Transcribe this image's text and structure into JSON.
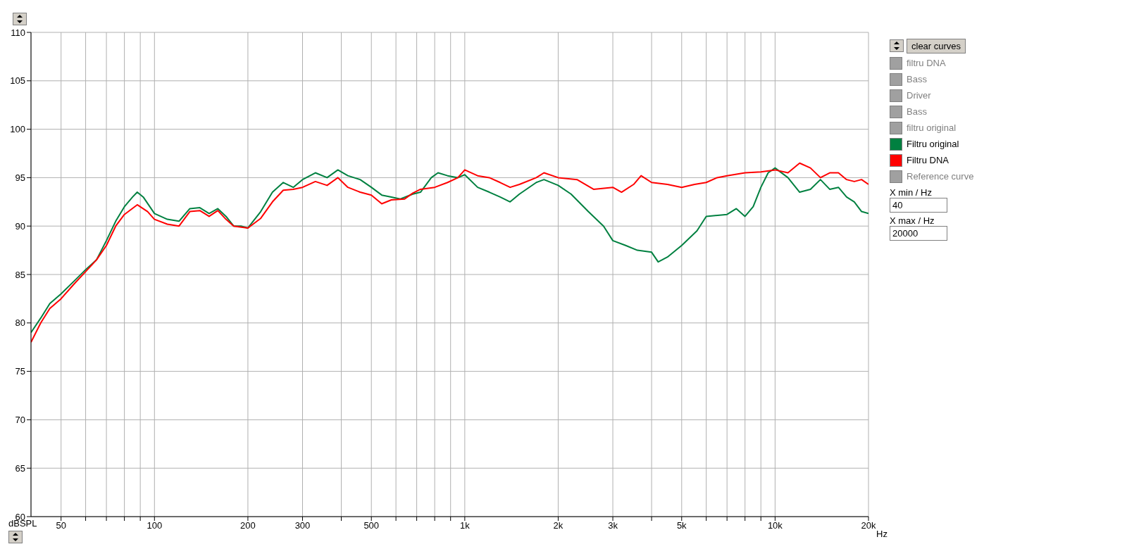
{
  "chart_data": {
    "type": "line",
    "ylabel": "dBSPL",
    "log": "x",
    "grid": true,
    "legend": "right",
    "line_style": "solid",
    "marker": "none",
    "xlim": [
      40,
      20000
    ],
    "ylim": [
      60,
      110
    ],
    "yticks": [
      60,
      65,
      70,
      75,
      80,
      85,
      90,
      95,
      100,
      105,
      110
    ],
    "xticks": [
      50,
      {
        "value": 60,
        "label": null
      },
      {
        "value": 70,
        "label": null
      },
      {
        "value": 80,
        "label": null
      },
      {
        "value": 90,
        "label": null
      },
      100,
      200,
      300,
      {
        "value": 400,
        "label": null
      },
      500,
      {
        "value": 600,
        "label": null
      },
      {
        "value": 700,
        "label": null
      },
      {
        "value": 800,
        "label": null
      },
      {
        "value": 900,
        "label": null
      },
      {
        "value": 1000,
        "label": "1k"
      },
      {
        "value": 2000,
        "label": "2k"
      },
      {
        "value": 3000,
        "label": "3k"
      },
      {
        "value": 4000,
        "label": null
      },
      {
        "value": 5000,
        "label": "5k"
      },
      {
        "value": 6000,
        "label": null
      },
      {
        "value": 7000,
        "label": null
      },
      {
        "value": 8000,
        "label": null
      },
      {
        "value": 9000,
        "label": null
      },
      {
        "value": 10000,
        "label": "10k"
      },
      {
        "value": 20000,
        "label": "20k"
      }
    ],
    "xlabel": "Hz",
    "annotations": [
      "clear curves",
      "filtru DNA",
      "Bass",
      "Driver",
      "Bass",
      "filtru original",
      "Reference curve",
      "X min / Hz",
      "40",
      "X max / Hz",
      "20000"
    ],
    "series": [
      {
        "name": "Filtru original",
        "color": "#008040",
        "x": [
          40,
          43,
          46,
          50,
          55,
          60,
          65,
          70,
          75,
          80,
          85,
          88,
          92,
          100,
          110,
          120,
          130,
          140,
          150,
          160,
          170,
          180,
          190,
          200,
          220,
          240,
          260,
          280,
          300,
          330,
          360,
          390,
          420,
          460,
          500,
          540,
          580,
          620,
          680,
          720,
          780,
          820,
          880,
          950,
          1000,
          1100,
          1200,
          1300,
          1400,
          1500,
          1700,
          1800,
          2000,
          2200,
          2500,
          2800,
          3000,
          3300,
          3600,
          4000,
          4200,
          4500,
          5000,
          5600,
          6000,
          7000,
          7500,
          8000,
          8500,
          9000,
          9500,
          10000,
          11000,
          12000,
          13000,
          14000,
          15000,
          16000,
          17000,
          18000,
          19000,
          20000
        ],
        "values": [
          79,
          80.5,
          82,
          83,
          84.3,
          85.5,
          86.5,
          88.5,
          90.5,
          92,
          93,
          93.5,
          93,
          91.3,
          90.7,
          90.5,
          91.8,
          91.9,
          91.3,
          91.8,
          91,
          90,
          90,
          89.8,
          91.5,
          93.5,
          94.5,
          94,
          94.8,
          95.5,
          95,
          95.8,
          95.2,
          94.8,
          94,
          93.2,
          93,
          92.8,
          93.3,
          93.5,
          95,
          95.5,
          95.2,
          95,
          95.3,
          94,
          93.5,
          93,
          92.5,
          93.3,
          94.5,
          94.8,
          94.2,
          93.3,
          91.5,
          90,
          88.5,
          88,
          87.5,
          87.3,
          86.3,
          86.8,
          88,
          89.5,
          91,
          91.2,
          91.8,
          91,
          92,
          94,
          95.5,
          96,
          95,
          93.5,
          93.8,
          94.8,
          93.8,
          94,
          93,
          92.5,
          91.5,
          91.3
        ]
      },
      {
        "name": "Filtru DNA",
        "color": "#ff0000",
        "x": [
          40,
          43,
          46,
          50,
          55,
          60,
          65,
          70,
          75,
          80,
          88,
          95,
          100,
          110,
          120,
          130,
          140,
          150,
          160,
          170,
          180,
          200,
          220,
          240,
          260,
          280,
          300,
          330,
          360,
          390,
          420,
          460,
          500,
          540,
          580,
          640,
          680,
          720,
          800,
          880,
          950,
          1000,
          1100,
          1200,
          1300,
          1400,
          1500,
          1700,
          1800,
          2000,
          2300,
          2600,
          3000,
          3200,
          3500,
          3700,
          4000,
          4500,
          5000,
          5500,
          6000,
          6500,
          7000,
          8000,
          9000,
          10000,
          11000,
          12000,
          13000,
          14000,
          15000,
          16000,
          17000,
          18000,
          19000,
          20000
        ],
        "values": [
          78,
          80,
          81.5,
          82.5,
          84,
          85.3,
          86.5,
          88,
          90,
          91.2,
          92.2,
          91.5,
          90.7,
          90.2,
          90,
          91.5,
          91.6,
          91,
          91.6,
          90.7,
          90,
          89.8,
          90.8,
          92.5,
          93.7,
          93.8,
          94,
          94.6,
          94.2,
          95,
          94,
          93.5,
          93.2,
          92.3,
          92.7,
          92.8,
          93.4,
          93.8,
          94,
          94.5,
          95,
          95.8,
          95.2,
          95,
          94.5,
          94,
          94.3,
          95,
          95.5,
          95,
          94.8,
          93.8,
          94,
          93.5,
          94.3,
          95.2,
          94.5,
          94.3,
          94,
          94.3,
          94.5,
          95,
          95.2,
          95.5,
          95.6,
          95.8,
          95.5,
          96.5,
          96,
          95,
          95.5,
          95.5,
          94.8,
          94.6,
          94.8,
          94.3
        ]
      }
    ]
  }
}
